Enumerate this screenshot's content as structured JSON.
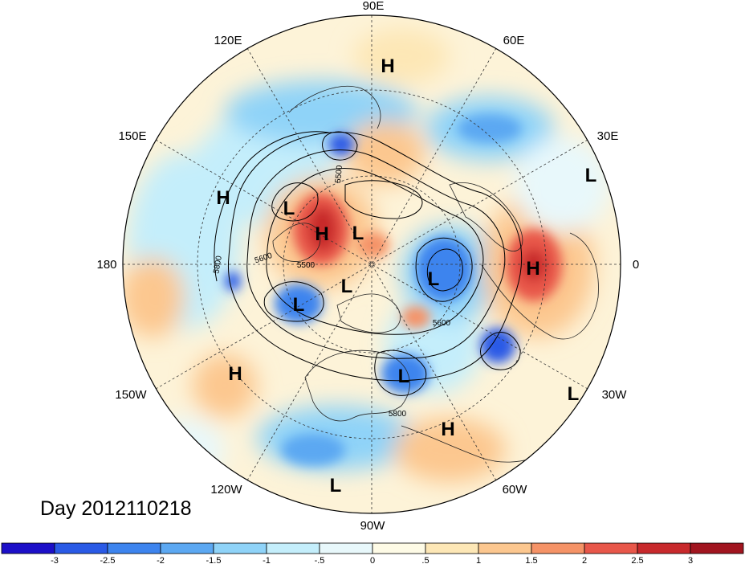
{
  "title": "Day 2012110218",
  "longitude_labels": [
    {
      "name": "lon-90e",
      "text": "90E"
    },
    {
      "name": "lon-60e",
      "text": "60E"
    },
    {
      "name": "lon-30e",
      "text": "30E"
    },
    {
      "name": "lon-0",
      "text": "0"
    },
    {
      "name": "lon-30w",
      "text": "30W"
    },
    {
      "name": "lon-60w",
      "text": "60W"
    },
    {
      "name": "lon-90w",
      "text": "90W"
    },
    {
      "name": "lon-120w",
      "text": "120W"
    },
    {
      "name": "lon-150w",
      "text": "150W"
    },
    {
      "name": "lon-180",
      "text": "180"
    },
    {
      "name": "lon-150e",
      "text": "150E"
    },
    {
      "name": "lon-120e",
      "text": "120E"
    }
  ],
  "pressure_centers": [
    {
      "type": "H"
    },
    {
      "type": "H"
    },
    {
      "type": "H"
    },
    {
      "type": "H"
    },
    {
      "type": "H"
    },
    {
      "type": "H"
    },
    {
      "type": "L"
    },
    {
      "type": "L"
    },
    {
      "type": "L"
    },
    {
      "type": "L"
    },
    {
      "type": "L"
    },
    {
      "type": "L"
    },
    {
      "type": "L"
    },
    {
      "type": "L"
    },
    {
      "type": "L"
    }
  ],
  "contour_labels": [
    "5500",
    "5600",
    "5800",
    "5500",
    "5600",
    "5800"
  ],
  "colorbar": {
    "colors": [
      "#1c0fc8",
      "#2a5ae6",
      "#3d84ee",
      "#5ca8f2",
      "#8fd3f8",
      "#c4eefb",
      "#e8f8fb",
      "#fefbe6",
      "#fde7b6",
      "#fcc78f",
      "#f59367",
      "#e8574a",
      "#c8292c",
      "#a1151f"
    ],
    "ticks": [
      "-3",
      "-2.5",
      "-2",
      "-1.5",
      "-1",
      "-.5",
      "0",
      ".5",
      "1",
      "1.5",
      "2",
      "2.5",
      "3"
    ]
  }
}
